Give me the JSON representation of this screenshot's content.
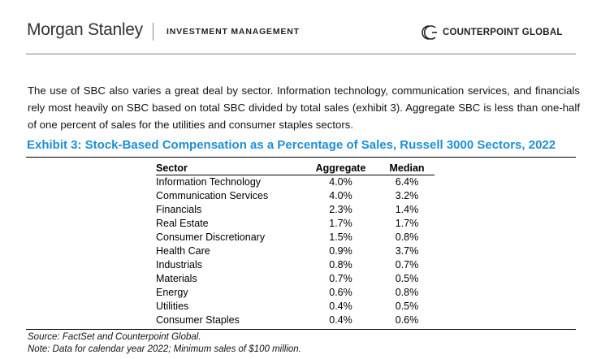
{
  "header": {
    "brand": "Morgan Stanley",
    "division": "INVESTMENT MANAGEMENT",
    "partner": "COUNTERPOINT GLOBAL",
    "partner_icon": "counterpoint-logo-icon"
  },
  "body": {
    "paragraph": "The use of SBC also varies a great deal by sector. Information technology, communication services, and financials rely most heavily on SBC based on total SBC divided by total sales (exhibit 3). Aggregate SBC is less than one-half of one percent of sales for the utilities and consumer staples sectors."
  },
  "exhibit": {
    "title": "Exhibit 3: Stock-Based Compensation as a Percentage of Sales, Russell 3000 Sectors, 2022",
    "title_color": "#1d8fd6",
    "columns": [
      "Sector",
      "Aggregate",
      "Median"
    ],
    "rows": [
      {
        "sector": "Information Technology",
        "aggregate": "4.0%",
        "median": "6.4%"
      },
      {
        "sector": "Communication Services",
        "aggregate": "4.0%",
        "median": "3.2%"
      },
      {
        "sector": "Financials",
        "aggregate": "2.3%",
        "median": "1.4%"
      },
      {
        "sector": "Real Estate",
        "aggregate": "1.7%",
        "median": "1.7%"
      },
      {
        "sector": "Consumer Discretionary",
        "aggregate": "1.5%",
        "median": "0.8%"
      },
      {
        "sector": "Health Care",
        "aggregate": "0.9%",
        "median": "3.7%"
      },
      {
        "sector": "Industrials",
        "aggregate": "0.8%",
        "median": "0.7%"
      },
      {
        "sector": "Materials",
        "aggregate": "0.7%",
        "median": "0.5%"
      },
      {
        "sector": "Energy",
        "aggregate": "0.6%",
        "median": "0.8%"
      },
      {
        "sector": "Utilities",
        "aggregate": "0.4%",
        "median": "0.5%"
      },
      {
        "sector": "Consumer Staples",
        "aggregate": "0.4%",
        "median": "0.6%"
      }
    ],
    "source": "Source: FactSet and Counterpoint Global.",
    "note": "Note: Data for calendar year 2022; Minimum sales of $100 million."
  },
  "chart_data": {
    "type": "table",
    "title": "Exhibit 3: Stock-Based Compensation as a Percentage of Sales, Russell 3000 Sectors, 2022",
    "columns": [
      "Sector",
      "Aggregate",
      "Median"
    ],
    "categories": [
      "Information Technology",
      "Communication Services",
      "Financials",
      "Real Estate",
      "Consumer Discretionary",
      "Health Care",
      "Industrials",
      "Materials",
      "Energy",
      "Utilities",
      "Consumer Staples"
    ],
    "series": [
      {
        "name": "Aggregate",
        "values": [
          4.0,
          4.0,
          2.3,
          1.7,
          1.5,
          0.9,
          0.8,
          0.7,
          0.6,
          0.4,
          0.4
        ]
      },
      {
        "name": "Median",
        "values": [
          6.4,
          3.2,
          1.4,
          1.7,
          0.8,
          3.7,
          0.7,
          0.5,
          0.8,
          0.5,
          0.6
        ]
      }
    ],
    "unit": "%"
  }
}
